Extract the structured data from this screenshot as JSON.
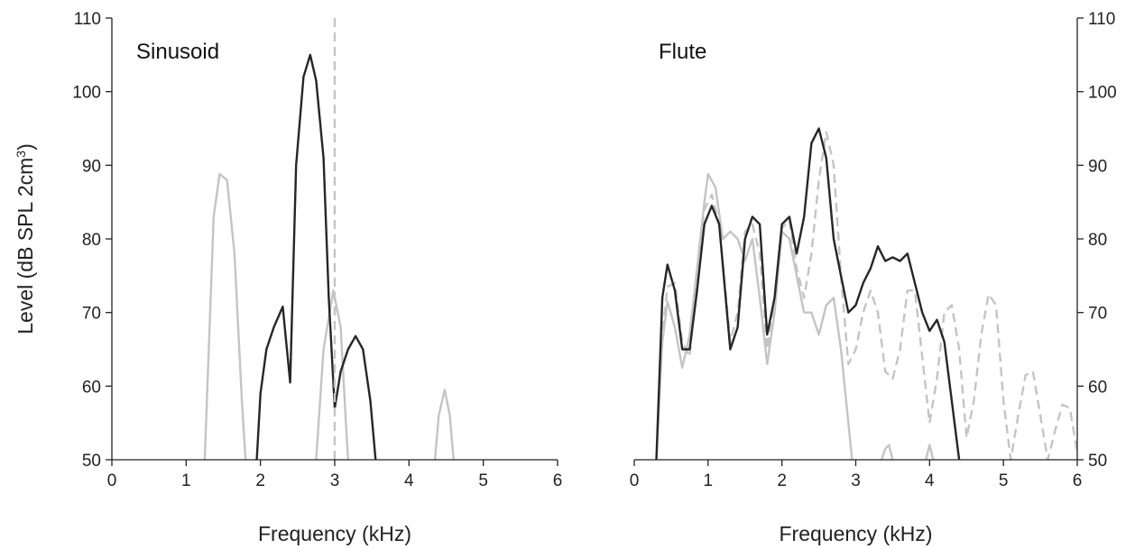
{
  "chart_data": {
    "type": "line",
    "ylabel": "Level (dB SPL 2cm",
    "ylabel_sup": "3",
    "ylabel_close": ")",
    "ylim": [
      50,
      110
    ],
    "xlim": [
      0,
      6
    ],
    "xticks": [
      "0",
      "1",
      "2",
      "3",
      "4",
      "5",
      "6"
    ],
    "yticks": [
      "50",
      "60",
      "70",
      "80",
      "90",
      "100",
      "110"
    ],
    "colors": {
      "dark": "#262626",
      "light": "#c4c4c4",
      "dashed": "#c4c4c4"
    },
    "panels": [
      {
        "title": "Sinusoid",
        "xlabel": "Frequency (kHz)",
        "y_axis_side": "left",
        "series": [
          {
            "style": "light",
            "x": [
              1.25,
              1.37,
              1.45,
              1.55,
              1.65,
              1.75,
              1.8
            ],
            "y": [
              50,
              83,
              88.8,
              88,
              78,
              58,
              50
            ]
          },
          {
            "style": "light",
            "x": [
              2.75,
              2.85,
              2.98,
              3.08,
              3.15,
              3.18
            ],
            "y": [
              50,
              65,
              73,
              68,
              55,
              50
            ]
          },
          {
            "style": "light",
            "x": [
              4.35,
              4.4,
              4.48,
              4.55,
              4.6
            ],
            "y": [
              50,
              56,
              59.5,
              56,
              50
            ]
          },
          {
            "style": "dark",
            "x": [
              1.95,
              2.0,
              2.08,
              2.18,
              2.3,
              2.4,
              2.48,
              2.58,
              2.67,
              2.75,
              2.85,
              2.92,
              3.0,
              3.08,
              3.18,
              3.28,
              3.38,
              3.48,
              3.55
            ],
            "y": [
              50,
              59,
              65,
              68,
              70.8,
              60.5,
              90,
              102,
              105,
              101.5,
              91,
              72,
              57,
              62,
              65,
              66.8,
              65,
              58,
              50
            ]
          },
          {
            "style": "dashed",
            "x": [
              3.0,
              3.0
            ],
            "y": [
              50,
              110
            ]
          }
        ]
      },
      {
        "title": "Flute",
        "xlabel": "Frequency (kHz)",
        "y_axis_side": "right",
        "series": [
          {
            "style": "dashed",
            "x": [
              0.3,
              0.38,
              0.45,
              0.55,
              0.65,
              0.75,
              0.85,
              0.95,
              1.05,
              1.15,
              1.3,
              1.4,
              1.5,
              1.6,
              1.7,
              1.8,
              1.9,
              2.0,
              2.1,
              2.2,
              2.3,
              2.4,
              2.5,
              2.6,
              2.7,
              2.8,
              2.9,
              3.0,
              3.1,
              3.2,
              3.3,
              3.4,
              3.5,
              3.6,
              3.7,
              3.8,
              3.9,
              4.0,
              4.1,
              4.2,
              4.3,
              4.4,
              4.5,
              4.6,
              4.7,
              4.8,
              4.9,
              5.0,
              5.1,
              5.2,
              5.3,
              5.4,
              5.5,
              5.6,
              5.7,
              5.8,
              5.9,
              6.0
            ],
            "y": [
              50,
              67,
              73.5,
              74,
              66,
              64,
              75,
              84,
              86,
              82,
              66,
              70,
              81,
              82,
              78,
              65,
              72,
              81.5,
              82.5,
              76,
              72,
              78,
              88,
              94.5,
              90,
              75,
              63,
              65,
              70,
              73,
              70,
              62,
              61,
              65,
              73,
              73,
              64,
              55,
              61,
              70,
              71,
              65,
              53,
              58,
              67,
              72.5,
              71,
              58,
              50,
              56,
              61.5,
              62,
              56,
              50,
              54,
              57.5,
              57,
              51
            ]
          },
          {
            "style": "light",
            "x": [
              0.3,
              0.38,
              0.45,
              0.55,
              0.65,
              0.75,
              0.85,
              0.95,
              1.0,
              1.1,
              1.2,
              1.3,
              1.4,
              1.5,
              1.6,
              1.7,
              1.8,
              1.9,
              2.0,
              2.1,
              2.2,
              2.3,
              2.4,
              2.5,
              2.6,
              2.7,
              2.8,
              2.9,
              2.95
            ],
            "y": [
              50,
              66,
              71.5,
              68,
              62.5,
              67,
              76,
              85,
              88.8,
              87,
              80,
              81,
              80,
              77,
              80,
              72,
              63,
              70,
              81,
              80,
              75,
              70,
              70,
              67,
              71,
              72,
              65,
              55,
              50
            ]
          },
          {
            "style": "light",
            "x": [
              3.35,
              3.4,
              3.45,
              3.5
            ],
            "y": [
              50,
              51.5,
              52,
              50
            ]
          },
          {
            "style": "light",
            "x": [
              3.95,
              4.0,
              4.05
            ],
            "y": [
              50,
              52,
              50
            ]
          },
          {
            "style": "dark",
            "x": [
              0.3,
              0.38,
              0.45,
              0.55,
              0.65,
              0.75,
              0.85,
              0.95,
              1.05,
              1.15,
              1.3,
              1.4,
              1.5,
              1.6,
              1.7,
              1.8,
              1.9,
              2.0,
              2.1,
              2.2,
              2.3,
              2.4,
              2.5,
              2.6,
              2.7,
              2.8,
              2.9,
              3.0,
              3.1,
              3.2,
              3.3,
              3.4,
              3.5,
              3.6,
              3.7,
              3.8,
              3.9,
              4.0,
              4.1,
              4.2,
              4.3,
              4.4
            ],
            "y": [
              50,
              72,
              76.5,
              73,
              65,
              65,
              73,
              82,
              84.5,
              82,
              65,
              68,
              80,
              83,
              82,
              67,
              72,
              82,
              83,
              78,
              83,
              93,
              95,
              91,
              80,
              75,
              70,
              71,
              74,
              76,
              79,
              77,
              77.5,
              77,
              78,
              74,
              70,
              67.5,
              69,
              66,
              58,
              50
            ]
          }
        ]
      }
    ]
  }
}
